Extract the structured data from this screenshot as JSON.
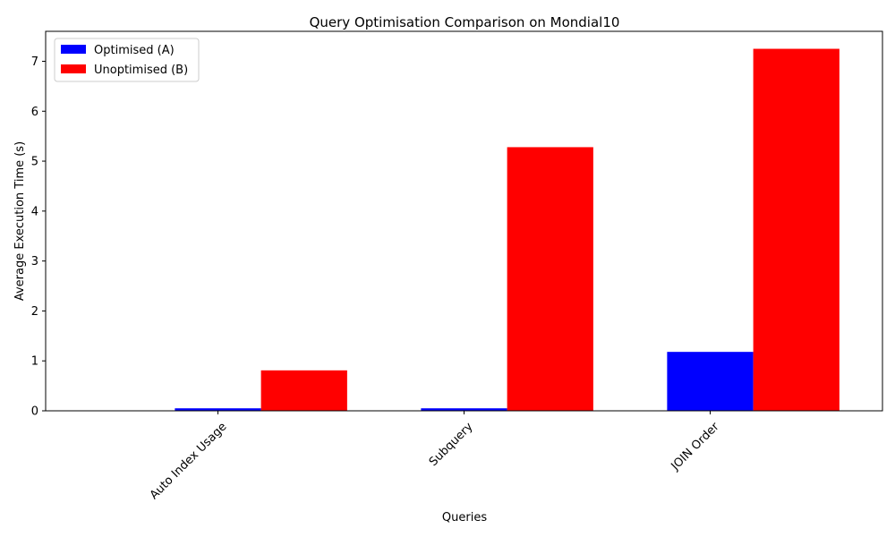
{
  "chart_data": {
    "type": "bar",
    "title": "Query Optimisation Comparison on Mondial10",
    "xlabel": "Queries",
    "ylabel": "Average Execution Time (s)",
    "categories": [
      "Auto Index Usage",
      "Subquery",
      "JOIN Order"
    ],
    "series": [
      {
        "name": "Optimised (A)",
        "color": "#0000ff",
        "values": [
          0.05,
          0.05,
          1.18
        ]
      },
      {
        "name": "Unoptimised (B)",
        "color": "#ff0000",
        "values": [
          0.81,
          5.28,
          7.25
        ]
      }
    ],
    "ylim": [
      0,
      7.6
    ],
    "yticks": [
      0,
      1,
      2,
      3,
      4,
      5,
      6,
      7
    ],
    "legend_position": "top-left",
    "grid": false
  }
}
